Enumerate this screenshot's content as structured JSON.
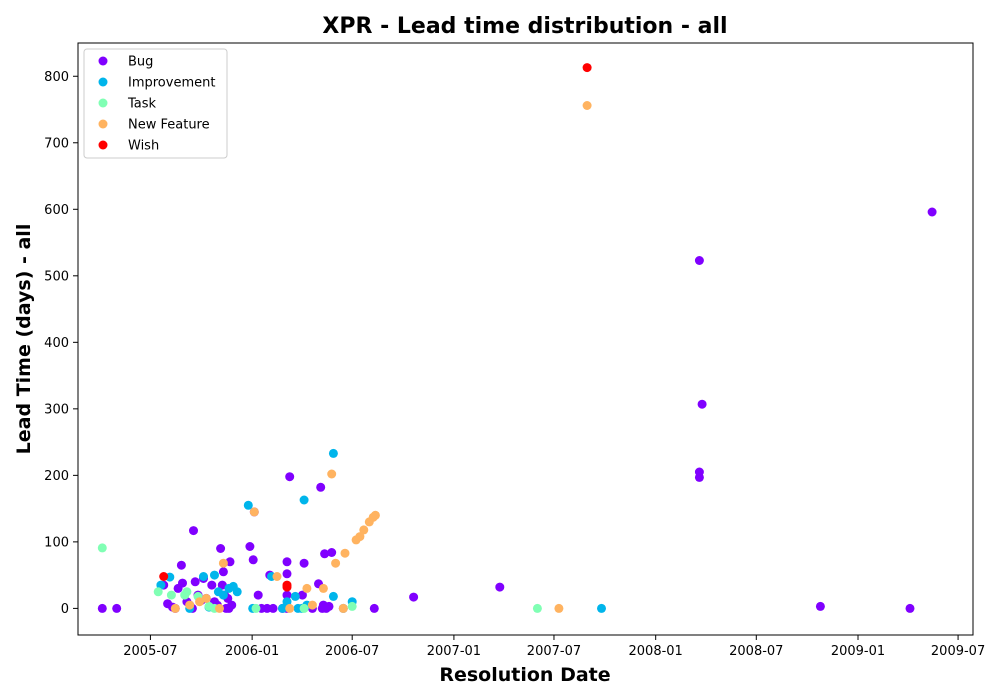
{
  "chart_data": {
    "type": "scatter",
    "title": "XPR - Lead time distribution - all",
    "xlabel": "Resolution Date",
    "ylabel": "Lead Time (days) - all",
    "x_type": "date",
    "xlim": [
      "2005-02-20",
      "2009-07-28"
    ],
    "ylim": [
      -40,
      850
    ],
    "x_ticks": [
      {
        "date": "2005-07-01",
        "label": "2005-07"
      },
      {
        "date": "2006-01-01",
        "label": "2006-01"
      },
      {
        "date": "2006-07-01",
        "label": "2006-07"
      },
      {
        "date": "2007-01-01",
        "label": "2007-01"
      },
      {
        "date": "2007-07-01",
        "label": "2007-07"
      },
      {
        "date": "2008-01-01",
        "label": "2008-01"
      },
      {
        "date": "2008-07-01",
        "label": "2008-07"
      },
      {
        "date": "2009-01-01",
        "label": "2009-01"
      },
      {
        "date": "2009-07-01",
        "label": "2009-07"
      }
    ],
    "y_ticks": [
      0,
      100,
      200,
      300,
      400,
      500,
      600,
      700,
      800
    ],
    "grid": false,
    "legend_position": "top-left",
    "series": [
      {
        "name": "Bug",
        "color": "#8000ff",
        "points": [
          [
            "2005-04-05",
            0
          ],
          [
            "2005-05-01",
            0
          ],
          [
            "2005-07-25",
            35
          ],
          [
            "2005-08-01",
            7
          ],
          [
            "2005-08-10",
            2
          ],
          [
            "2005-08-15",
            0
          ],
          [
            "2005-08-20",
            30
          ],
          [
            "2005-08-26",
            65
          ],
          [
            "2005-08-28",
            38
          ],
          [
            "2005-09-05",
            10
          ],
          [
            "2005-09-10",
            5
          ],
          [
            "2005-09-15",
            0
          ],
          [
            "2005-09-17",
            117
          ],
          [
            "2005-09-20",
            40
          ],
          [
            "2005-09-25",
            20
          ],
          [
            "2005-10-01",
            12
          ],
          [
            "2005-10-05",
            45
          ],
          [
            "2005-10-10",
            15
          ],
          [
            "2005-10-20",
            35
          ],
          [
            "2005-10-25",
            10
          ],
          [
            "2005-10-30",
            5
          ],
          [
            "2005-11-05",
            90
          ],
          [
            "2005-11-08",
            35
          ],
          [
            "2005-11-10",
            55
          ],
          [
            "2005-11-12",
            20
          ],
          [
            "2005-11-15",
            0
          ],
          [
            "2005-11-18",
            15
          ],
          [
            "2005-11-20",
            0
          ],
          [
            "2005-11-22",
            70
          ],
          [
            "2005-11-25",
            5
          ],
          [
            "2005-12-28",
            93
          ],
          [
            "2006-01-03",
            73
          ],
          [
            "2006-01-05",
            145
          ],
          [
            "2006-01-12",
            20
          ],
          [
            "2006-01-18",
            0
          ],
          [
            "2006-01-28",
            0
          ],
          [
            "2006-02-02",
            50
          ],
          [
            "2006-02-08",
            0
          ],
          [
            "2006-02-25",
            0
          ],
          [
            "2006-03-05",
            70
          ],
          [
            "2006-03-05",
            52
          ],
          [
            "2006-03-05",
            20
          ],
          [
            "2006-03-05",
            0
          ],
          [
            "2006-03-10",
            198
          ],
          [
            "2006-04-02",
            20
          ],
          [
            "2006-04-05",
            68
          ],
          [
            "2006-04-20",
            0
          ],
          [
            "2006-05-01",
            37
          ],
          [
            "2006-05-05",
            182
          ],
          [
            "2006-05-08",
            0
          ],
          [
            "2006-05-10",
            5
          ],
          [
            "2006-05-12",
            82
          ],
          [
            "2006-05-15",
            0
          ],
          [
            "2006-05-20",
            3
          ],
          [
            "2006-05-25",
            84
          ],
          [
            "2006-06-15",
            0
          ],
          [
            "2006-08-10",
            0
          ],
          [
            "2006-10-20",
            17
          ],
          [
            "2007-03-25",
            32
          ],
          [
            "2008-03-20",
            523
          ],
          [
            "2008-03-20",
            205
          ],
          [
            "2008-03-20",
            197
          ],
          [
            "2008-03-25",
            307
          ],
          [
            "2008-10-25",
            3
          ],
          [
            "2009-04-05",
            0
          ],
          [
            "2009-05-15",
            596
          ]
        ]
      },
      {
        "name": "Improvement",
        "color": "#00b5eb",
        "points": [
          [
            "2005-07-20",
            35
          ],
          [
            "2005-08-05",
            47
          ],
          [
            "2005-09-10",
            0
          ],
          [
            "2005-10-05",
            48
          ],
          [
            "2005-10-15",
            2
          ],
          [
            "2005-10-25",
            50
          ],
          [
            "2005-11-01",
            25
          ],
          [
            "2005-11-10",
            20
          ],
          [
            "2005-11-20",
            30
          ],
          [
            "2005-11-28",
            33
          ],
          [
            "2005-12-05",
            25
          ],
          [
            "2005-12-25",
            155
          ],
          [
            "2006-01-02",
            0
          ],
          [
            "2006-02-05",
            48
          ],
          [
            "2006-02-25",
            0
          ],
          [
            "2006-03-05",
            10
          ],
          [
            "2006-03-20",
            18
          ],
          [
            "2006-03-25",
            0
          ],
          [
            "2006-04-01",
            0
          ],
          [
            "2006-04-05",
            163
          ],
          [
            "2006-04-10",
            5
          ],
          [
            "2006-05-28",
            233
          ],
          [
            "2006-05-28",
            18
          ],
          [
            "2006-07-01",
            10
          ],
          [
            "2007-09-25",
            0
          ]
        ]
      },
      {
        "name": "Task",
        "color": "#80ffb4",
        "points": [
          [
            "2005-04-05",
            91
          ],
          [
            "2005-07-15",
            25
          ],
          [
            "2005-08-08",
            20
          ],
          [
            "2005-09-01",
            20
          ],
          [
            "2005-09-05",
            25
          ],
          [
            "2005-09-25",
            18
          ],
          [
            "2005-10-15",
            3
          ],
          [
            "2005-10-25",
            0
          ],
          [
            "2006-01-08",
            0
          ],
          [
            "2006-04-05",
            0
          ],
          [
            "2006-06-15",
            0
          ],
          [
            "2006-07-01",
            3
          ],
          [
            "2007-06-01",
            0
          ]
        ]
      },
      {
        "name": "New Feature",
        "color": "#ffb360",
        "points": [
          [
            "2005-08-15",
            0
          ],
          [
            "2005-09-10",
            5
          ],
          [
            "2005-09-28",
            10
          ],
          [
            "2005-10-10",
            15
          ],
          [
            "2005-11-03",
            0
          ],
          [
            "2005-11-10",
            68
          ],
          [
            "2006-01-05",
            145
          ],
          [
            "2006-02-15",
            48
          ],
          [
            "2006-03-10",
            0
          ],
          [
            "2006-04-10",
            30
          ],
          [
            "2006-04-20",
            5
          ],
          [
            "2006-05-10",
            30
          ],
          [
            "2006-05-25",
            202
          ],
          [
            "2006-06-01",
            68
          ],
          [
            "2006-06-15",
            0
          ],
          [
            "2006-06-18",
            83
          ],
          [
            "2006-07-08",
            103
          ],
          [
            "2006-07-15",
            108
          ],
          [
            "2006-07-22",
            118
          ],
          [
            "2006-08-01",
            130
          ],
          [
            "2006-08-08",
            137
          ],
          [
            "2006-08-12",
            140
          ],
          [
            "2007-07-10",
            0
          ],
          [
            "2007-08-30",
            756
          ]
        ]
      },
      {
        "name": "Wish",
        "color": "#ff0000",
        "points": [
          [
            "2005-07-25",
            48
          ],
          [
            "2006-03-05",
            35
          ],
          [
            "2006-03-05",
            32
          ],
          [
            "2007-08-30",
            813
          ]
        ]
      }
    ]
  }
}
